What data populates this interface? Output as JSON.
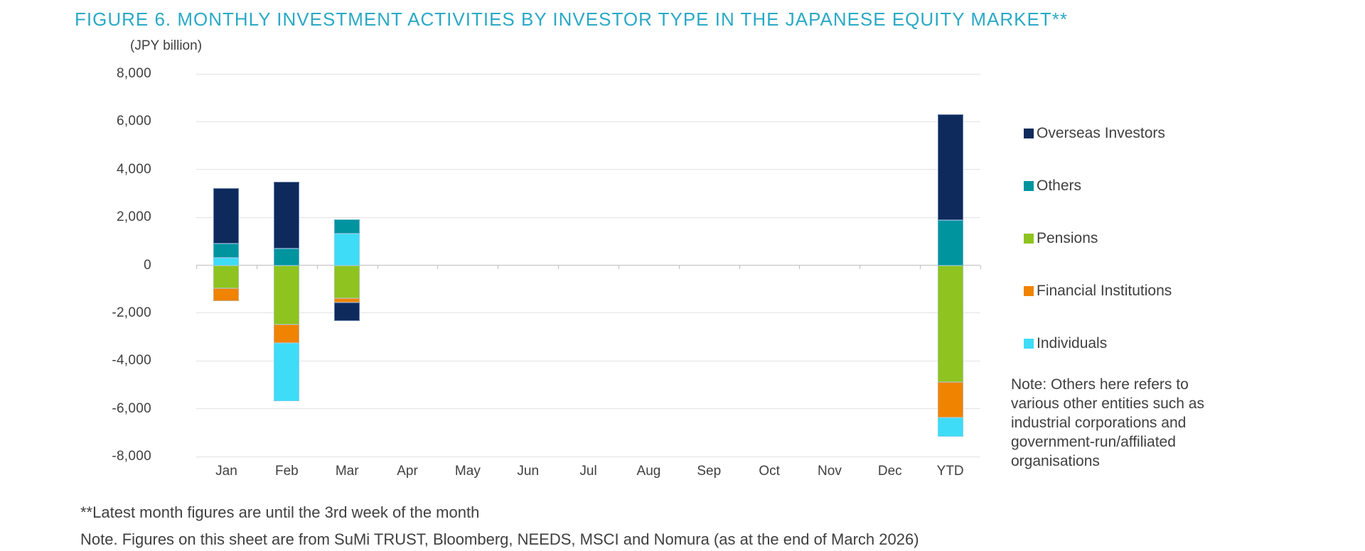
{
  "figure": {
    "title": "FIGURE 6. MONTHLY INVESTMENT ACTIVITIES BY INVESTOR TYPE IN THE JAPANESE EQUITY MARKET**",
    "title_color": "#2AA9C6"
  },
  "chart_data": {
    "type": "bar",
    "stacked": true,
    "title": "FIGURE 6. MONTHLY INVESTMENT ACTIVITIES BY INVESTOR TYPE IN THE JAPANESE EQUITY MARKET**",
    "ylabel": "(JPY billion)",
    "unit": "JPY billion",
    "categories": [
      "Jan",
      "Feb",
      "Mar",
      "Apr",
      "May",
      "Jun",
      "Jul",
      "Aug",
      "Sep",
      "Oct",
      "Nov",
      "Dec",
      "YTD"
    ],
    "series": [
      {
        "name": "Overseas Investors",
        "color": "#0E2A5C",
        "values": [
          2300,
          2780,
          -750,
          null,
          null,
          null,
          null,
          null,
          null,
          null,
          null,
          null,
          4400
        ]
      },
      {
        "name": "Others",
        "color": "#00949F",
        "values": [
          600,
          700,
          590,
          null,
          null,
          null,
          null,
          null,
          null,
          null,
          null,
          null,
          1900
        ]
      },
      {
        "name": "Pensions",
        "color": "#8FC31F",
        "values": [
          -950,
          -2490,
          -1390,
          null,
          null,
          null,
          null,
          null,
          null,
          null,
          null,
          null,
          -4880
        ]
      },
      {
        "name": "Financial Institutions",
        "color": "#F08300",
        "values": [
          -550,
          -770,
          -180,
          null,
          null,
          null,
          null,
          null,
          null,
          null,
          null,
          null,
          -1490
        ]
      },
      {
        "name": "Individuals",
        "color": "#3EDCF6",
        "values": [
          320,
          -2420,
          1320,
          null,
          null,
          null,
          null,
          null,
          null,
          null,
          null,
          null,
          -800
        ]
      }
    ],
    "stack_order_from_axis": [
      "Pensions",
      "Financial Institutions",
      "Individuals",
      "Others",
      "Overseas Investors"
    ],
    "ylim": [
      -8000,
      8000
    ],
    "yticks": [
      {
        "value": 8000,
        "label": "8,000"
      },
      {
        "value": 6000,
        "label": "6,000"
      },
      {
        "value": 4000,
        "label": "4,000"
      },
      {
        "value": 2000,
        "label": "2,000"
      },
      {
        "value": 0,
        "label": "0"
      },
      {
        "value": -2000,
        "label": "-2,000"
      },
      {
        "value": -4000,
        "label": "-4,000"
      },
      {
        "value": -6000,
        "label": "-6,000"
      },
      {
        "value": -8000,
        "label": "-8,000"
      }
    ],
    "grid": true,
    "legend_position": "right"
  },
  "note": {
    "lines": [
      "Note: Others here refers to",
      "various other entities such as",
      "industrial corporations and",
      "government-run/affiliated",
      "organisations"
    ]
  },
  "footnotes": {
    "line1": "**Latest month figures are until the 3rd week of the month",
    "line2": "Note. Figures on this sheet are from SuMi TRUST, Bloomberg, NEEDS, MSCI and Nomura (as at the end of March 2026)"
  },
  "colors": {
    "title": "#2AA9C6",
    "text": "#404040",
    "gridline": "#E3E3E3",
    "zero_line": "#BFBFBF"
  }
}
